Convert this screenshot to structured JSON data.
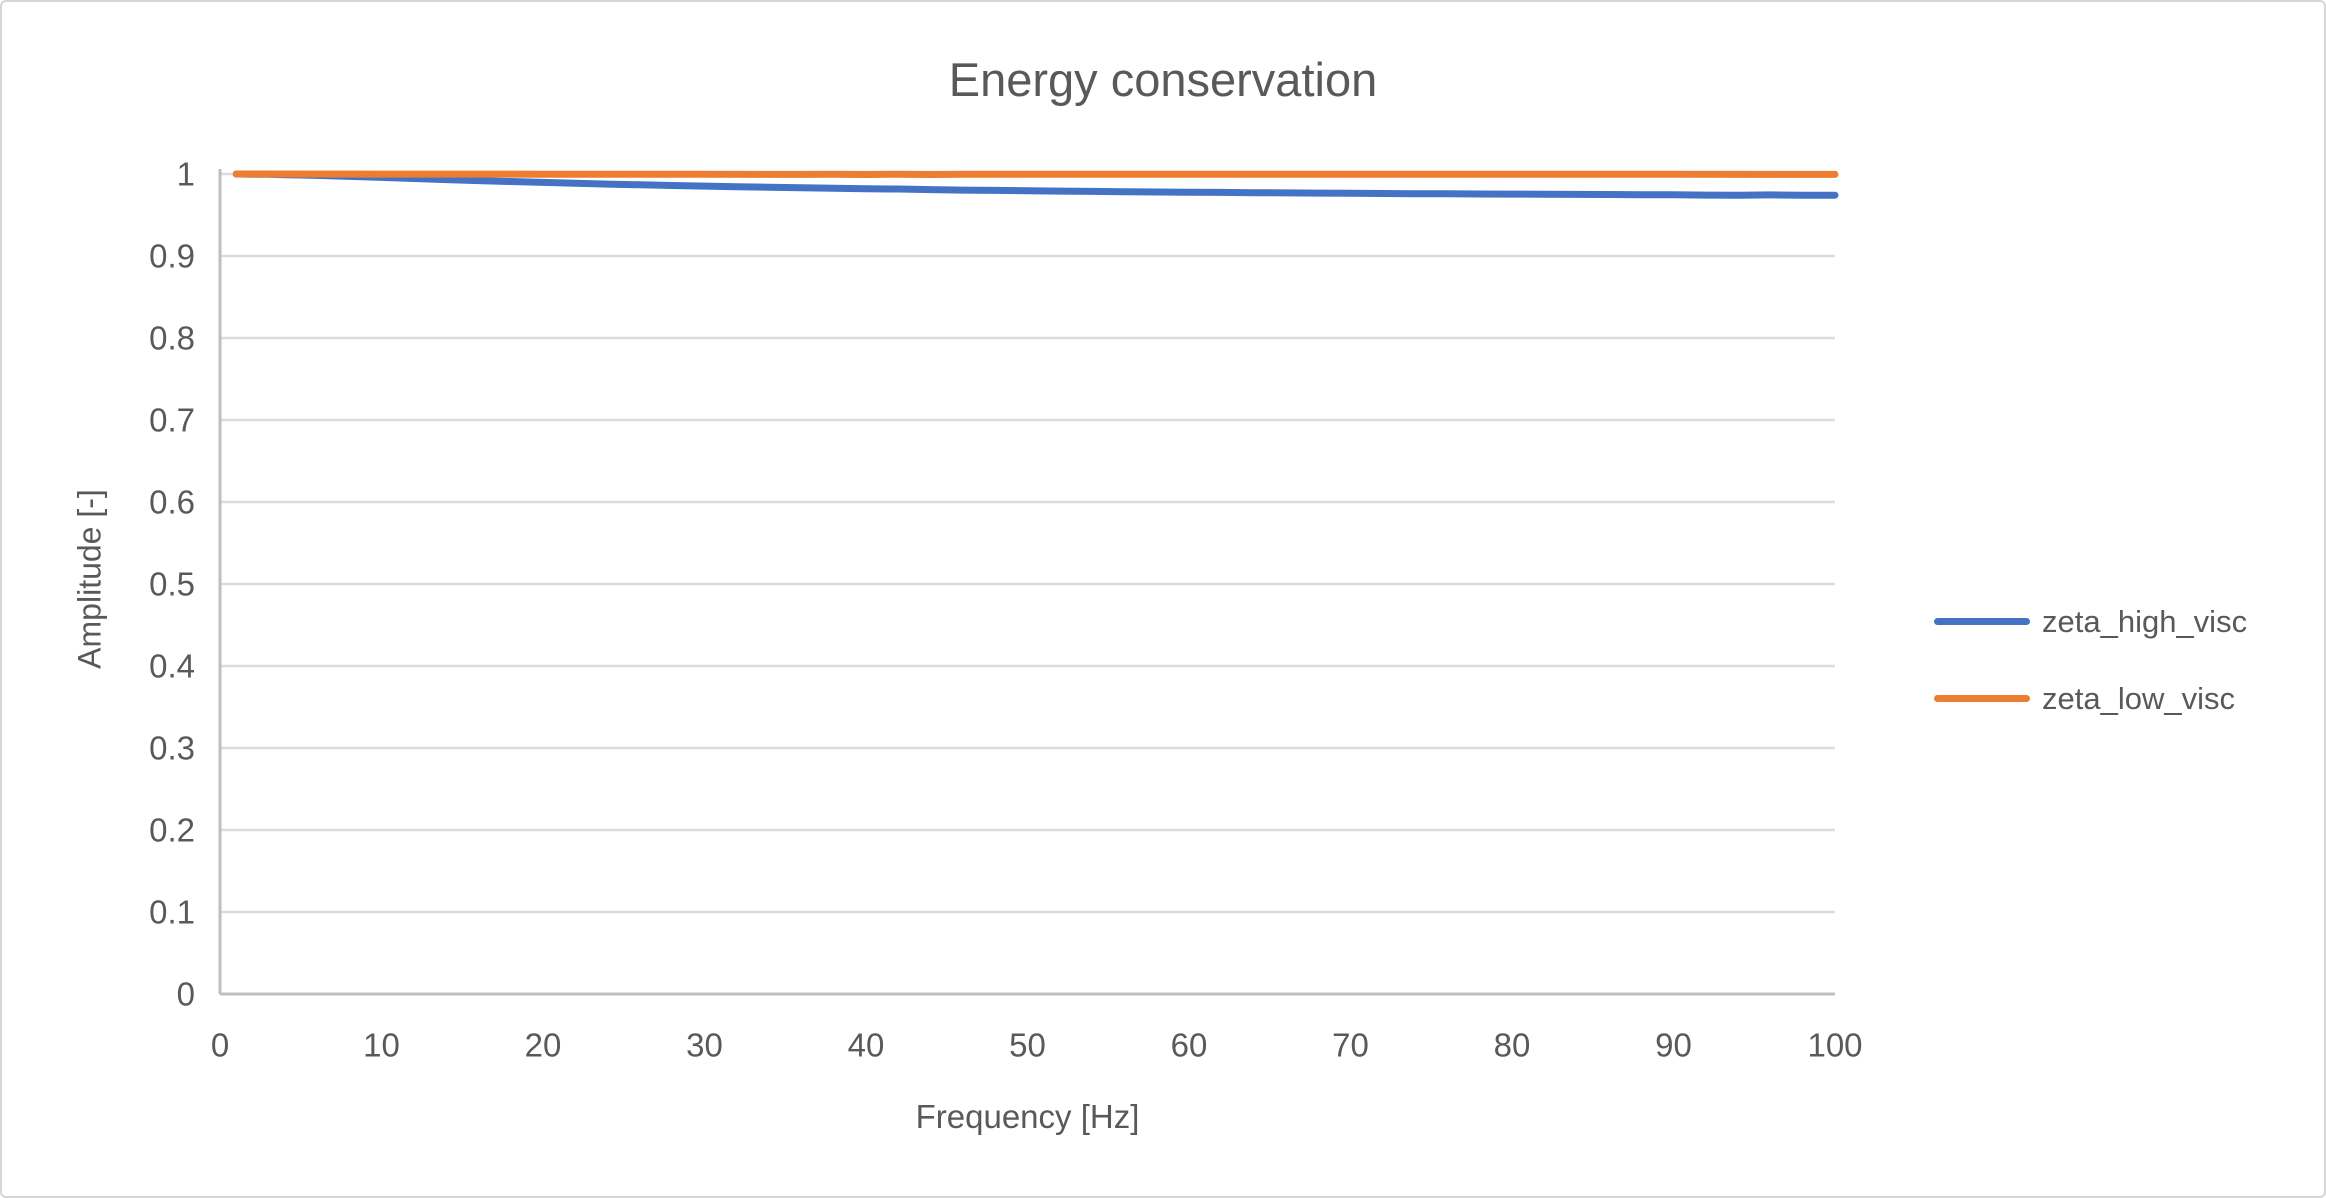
{
  "chart_data": {
    "type": "line",
    "title": "Energy conservation",
    "xlabel": "Frequency [Hz]",
    "ylabel": "Amplitude [-]",
    "xlim": [
      0,
      100
    ],
    "ylim": [
      0,
      1
    ],
    "x_ticks": [
      0,
      10,
      20,
      30,
      40,
      50,
      60,
      70,
      80,
      90,
      100
    ],
    "x_tick_labels": [
      "0",
      "10",
      "20",
      "30",
      "40",
      "50",
      "60",
      "70",
      "80",
      "90",
      "100"
    ],
    "y_ticks": [
      0,
      0.1,
      0.2,
      0.3,
      0.4,
      0.5,
      0.6,
      0.7,
      0.8,
      0.9,
      1
    ],
    "y_tick_labels": [
      "0",
      "0.1",
      "0.2",
      "0.3",
      "0.4",
      "0.5",
      "0.6",
      "0.7",
      "0.8",
      "0.9",
      "1"
    ],
    "grid": "horizontal",
    "legend_position": "right",
    "colors": {
      "text": "#595959",
      "gridline": "#dcdcdc",
      "axis": "#bfbfbf",
      "background": "#ffffff",
      "border": "#d6d6d6"
    },
    "series": [
      {
        "name": "zeta_high_visc",
        "color": "#4472C4",
        "x": [
          1,
          2,
          3,
          4,
          5,
          6,
          7,
          8,
          9,
          10,
          12,
          14,
          16,
          18,
          20,
          22,
          24,
          26,
          28,
          30,
          32,
          34,
          36,
          38,
          40,
          42,
          44,
          46,
          48,
          50,
          52,
          54,
          56,
          58,
          60,
          62,
          64,
          66,
          68,
          70,
          72,
          74,
          76,
          78,
          80,
          82,
          84,
          86,
          88,
          90,
          92,
          94,
          96,
          98,
          100
        ],
        "values": [
          1.0,
          0.9998,
          0.9996,
          0.9992,
          0.9988,
          0.9983,
          0.9977,
          0.9971,
          0.9965,
          0.9958,
          0.9945,
          0.9932,
          0.992,
          0.9908,
          0.9897,
          0.9887,
          0.9877,
          0.9868,
          0.986,
          0.9852,
          0.9845,
          0.9838,
          0.9832,
          0.9826,
          0.982,
          0.9817,
          0.981,
          0.9804,
          0.98,
          0.9796,
          0.9792,
          0.9788,
          0.9784,
          0.9781,
          0.9778,
          0.9775,
          0.9772,
          0.977,
          0.9767,
          0.9765,
          0.9762,
          0.976,
          0.9758,
          0.9756,
          0.9755,
          0.9753,
          0.9751,
          0.975,
          0.9748,
          0.9747,
          0.9743,
          0.9741,
          0.9745,
          0.9742,
          0.9741
        ]
      },
      {
        "name": "zeta_low_visc",
        "color": "#ED7D31",
        "x": [
          1,
          10,
          20,
          30,
          36,
          38,
          40,
          42,
          44,
          46,
          50,
          60,
          70,
          80,
          90,
          100
        ],
        "values": [
          1.0,
          0.9999,
          0.9998,
          0.9998,
          0.9995,
          0.9998,
          0.9994,
          0.9997,
          0.9994,
          0.9997,
          0.9998,
          0.9997,
          0.9997,
          0.9996,
          0.9996,
          0.9995
        ]
      }
    ]
  }
}
